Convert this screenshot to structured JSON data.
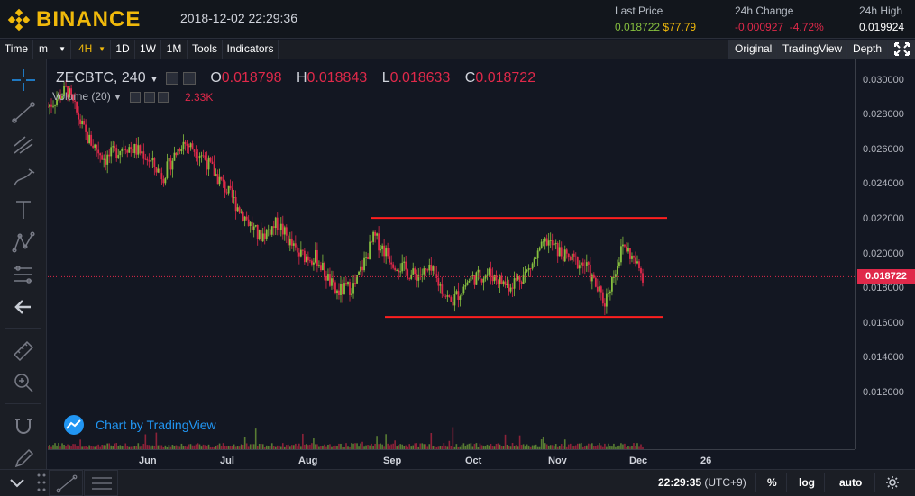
{
  "header": {
    "brand": "BINANCE",
    "datetime": "2018-12-02 22:29:36",
    "last_price_label": "Last Price",
    "last_price_btc": "0.018722",
    "last_price_usd": "$77.79",
    "change_label": "24h Change",
    "change_abs": "-0.000927",
    "change_pct": "-4.72%",
    "high_label": "24h High",
    "high_value": "0.019924"
  },
  "toolbar": {
    "time_label": "Time",
    "minute_label": "m",
    "interval_active": "4H",
    "intervals": [
      "1D",
      "1W",
      "1M"
    ],
    "tools_label": "Tools",
    "indicators_label": "Indicators",
    "views": [
      "Original",
      "TradingView",
      "Depth"
    ],
    "active_view": "TradingView"
  },
  "legend": {
    "symbol": "ZECBTC, 240",
    "o_label": "O",
    "o_value": "0.018798",
    "h_label": "H",
    "h_value": "0.018843",
    "l_label": "L",
    "l_value": "0.018633",
    "c_label": "C",
    "c_value": "0.018722",
    "volume_label": "Volume (20)",
    "volume_value": "2.33K"
  },
  "watermark": "Chart by TradingView",
  "yaxis": {
    "ticks": [
      "0.030000",
      "0.028000",
      "0.026000",
      "0.024000",
      "0.022000",
      "0.020000",
      "0.018000",
      "0.016000",
      "0.014000",
      "0.012000"
    ],
    "current_price": "0.018722"
  },
  "xaxis": {
    "ticks": [
      "Jun",
      "Jul",
      "Aug",
      "Sep",
      "Oct",
      "Nov",
      "Dec",
      "26"
    ]
  },
  "bottombar": {
    "clock": "22:29:35",
    "timezone": "(UTC+9)",
    "percent": "%",
    "log": "log",
    "auto": "auto"
  },
  "colors": {
    "up": "#87c03f",
    "down": "#e0294a",
    "accent": "#f0b90b",
    "trendline": "#ff1f1f"
  },
  "chart_data": {
    "type": "candlestick",
    "symbol": "ZECBTC",
    "interval": "240",
    "ylim": [
      0.0105,
      0.0305
    ],
    "x": [
      "Jun",
      "Jul",
      "Aug",
      "Sep",
      "Oct",
      "Nov",
      "Dec"
    ],
    "close_path": [
      0.0285,
      0.0295,
      0.0268,
      0.0255,
      0.0263,
      0.0258,
      0.0245,
      0.0265,
      0.0258,
      0.0242,
      0.0226,
      0.021,
      0.0218,
      0.02,
      0.0198,
      0.0178,
      0.0182,
      0.021,
      0.0196,
      0.0188,
      0.019,
      0.0172,
      0.0186,
      0.0189,
      0.0182,
      0.019,
      0.0208,
      0.0198,
      0.0194,
      0.0172,
      0.0206,
      0.0188
    ],
    "horizontal_lines": [
      0.0221,
      0.0164
    ],
    "current_price": 0.018722
  }
}
